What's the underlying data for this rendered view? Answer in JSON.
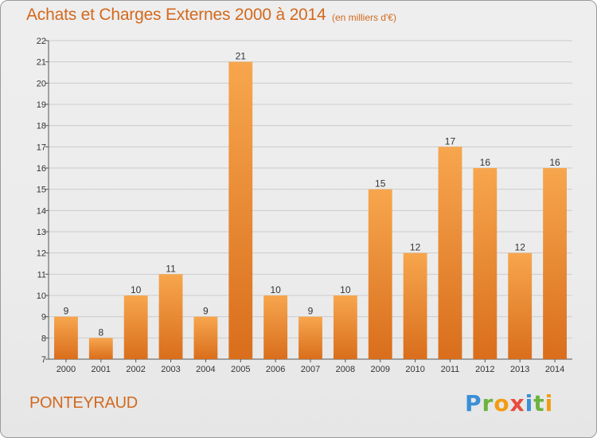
{
  "header": {
    "title": "Achats et Charges Externes 2000 à 2014",
    "unit": "(en milliers d'€)"
  },
  "footer": {
    "commune": "PONTEYRAUD",
    "logo": "Proxiti"
  },
  "colors": {
    "bar_light": "#f7a64e",
    "bar_dark": "#d96e1c",
    "accent": "#d2691e",
    "grid": "#cccccc"
  },
  "chart_data": {
    "type": "bar",
    "title": "Achats et Charges Externes 2000 à 2014",
    "subtitle": "(en milliers d'€)",
    "xlabel": "",
    "ylabel": "",
    "categories": [
      "2000",
      "2001",
      "2002",
      "2003",
      "2004",
      "2005",
      "2006",
      "2007",
      "2008",
      "2009",
      "2010",
      "2011",
      "2012",
      "2013",
      "2014"
    ],
    "values": [
      9,
      8,
      10,
      11,
      9,
      21,
      10,
      9,
      10,
      15,
      12,
      17,
      16,
      12,
      16
    ],
    "ylim": [
      7,
      22
    ],
    "yticks": [
      7,
      8,
      9,
      10,
      11,
      12,
      13,
      14,
      15,
      16,
      17,
      18,
      19,
      20,
      21,
      22
    ],
    "grid": true,
    "legend": "none"
  }
}
